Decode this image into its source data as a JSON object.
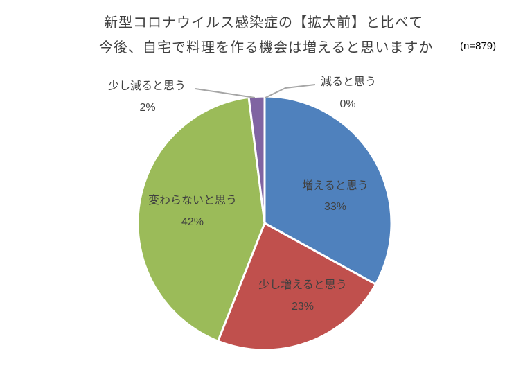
{
  "chart_data": {
    "type": "pie",
    "title": "新型コロナウイルス感染症の【拡大前】と比べて 今後、自宅で料理を作る機会は増えると思いますか",
    "title_lines": [
      "新型コロナウイルス感染症の【拡大前】と比べて",
      "今後、自宅で料理を作る機会は増えると思いますか"
    ],
    "sample_size_label": "(n=879)",
    "start_angle_deg": 0,
    "direction": "clockwise",
    "slices": [
      {
        "label": "増えると思う",
        "value": 33,
        "pct_label": "33%",
        "color": "#4F81BD"
      },
      {
        "label": "少し増えると思う",
        "value": 23,
        "pct_label": "23%",
        "color": "#C0504D"
      },
      {
        "label": "変わらないと思う",
        "value": 42,
        "pct_label": "42%",
        "color": "#9BBB59"
      },
      {
        "label": "少し減ると思う",
        "value": 2,
        "pct_label": "2%",
        "color": "#8064A2"
      },
      {
        "label": "減ると思う",
        "value": 0,
        "pct_label": "0%",
        "color": "#4BACC6"
      }
    ],
    "categories": [
      "増えると思う",
      "少し増えると思う",
      "変わらないと思う",
      "少し減ると思う",
      "減ると思う"
    ],
    "values": [
      33,
      23,
      42,
      2,
      0
    ],
    "legend": "none (data labels with category name and percent)"
  }
}
